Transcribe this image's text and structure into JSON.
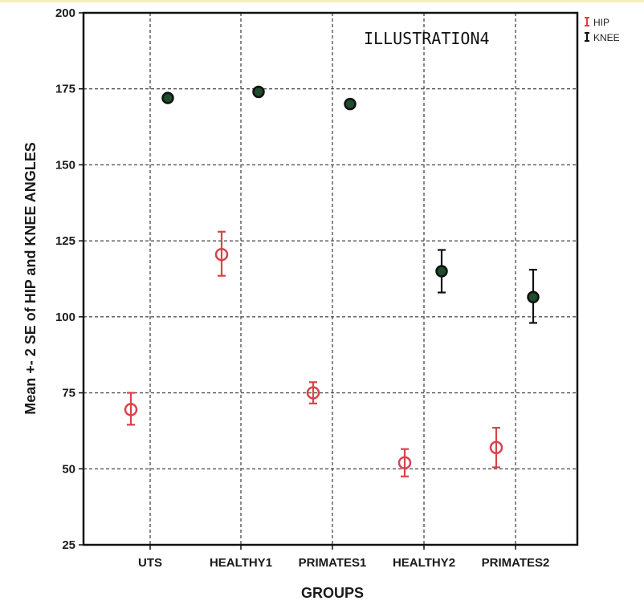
{
  "chart_data": {
    "type": "scatter",
    "title": "ILLUSTRATION4",
    "xlabel": "GROUPS",
    "ylabel": "Mean +- 2 SE of HIP and KNEE ANGLES",
    "categories": [
      "UTS",
      "HEALTHY1",
      "PRIMATES1",
      "HEALTHY2",
      "PRIMATES2"
    ],
    "ylim": [
      25,
      200
    ],
    "yticks": [
      25,
      50,
      75,
      100,
      125,
      150,
      175,
      200
    ],
    "grid": true,
    "legend_position": "top-right outside",
    "series": [
      {
        "name": "HIP",
        "color": "#d9434a",
        "marker": "open-circle",
        "values": [
          69.5,
          120.5,
          75,
          52,
          57
        ],
        "lower": [
          64.5,
          113.5,
          71.5,
          47.5,
          50.5
        ],
        "upper": [
          75,
          128,
          78.5,
          56.5,
          63.5
        ]
      },
      {
        "name": "KNEE",
        "color": "#111111",
        "marker": "filled-circle",
        "fill": "#1e4d2b",
        "values": [
          172,
          174,
          170,
          115,
          106.5
        ],
        "lower": [
          null,
          null,
          null,
          108,
          98
        ],
        "upper": [
          null,
          null,
          null,
          122,
          115.5
        ]
      }
    ]
  }
}
